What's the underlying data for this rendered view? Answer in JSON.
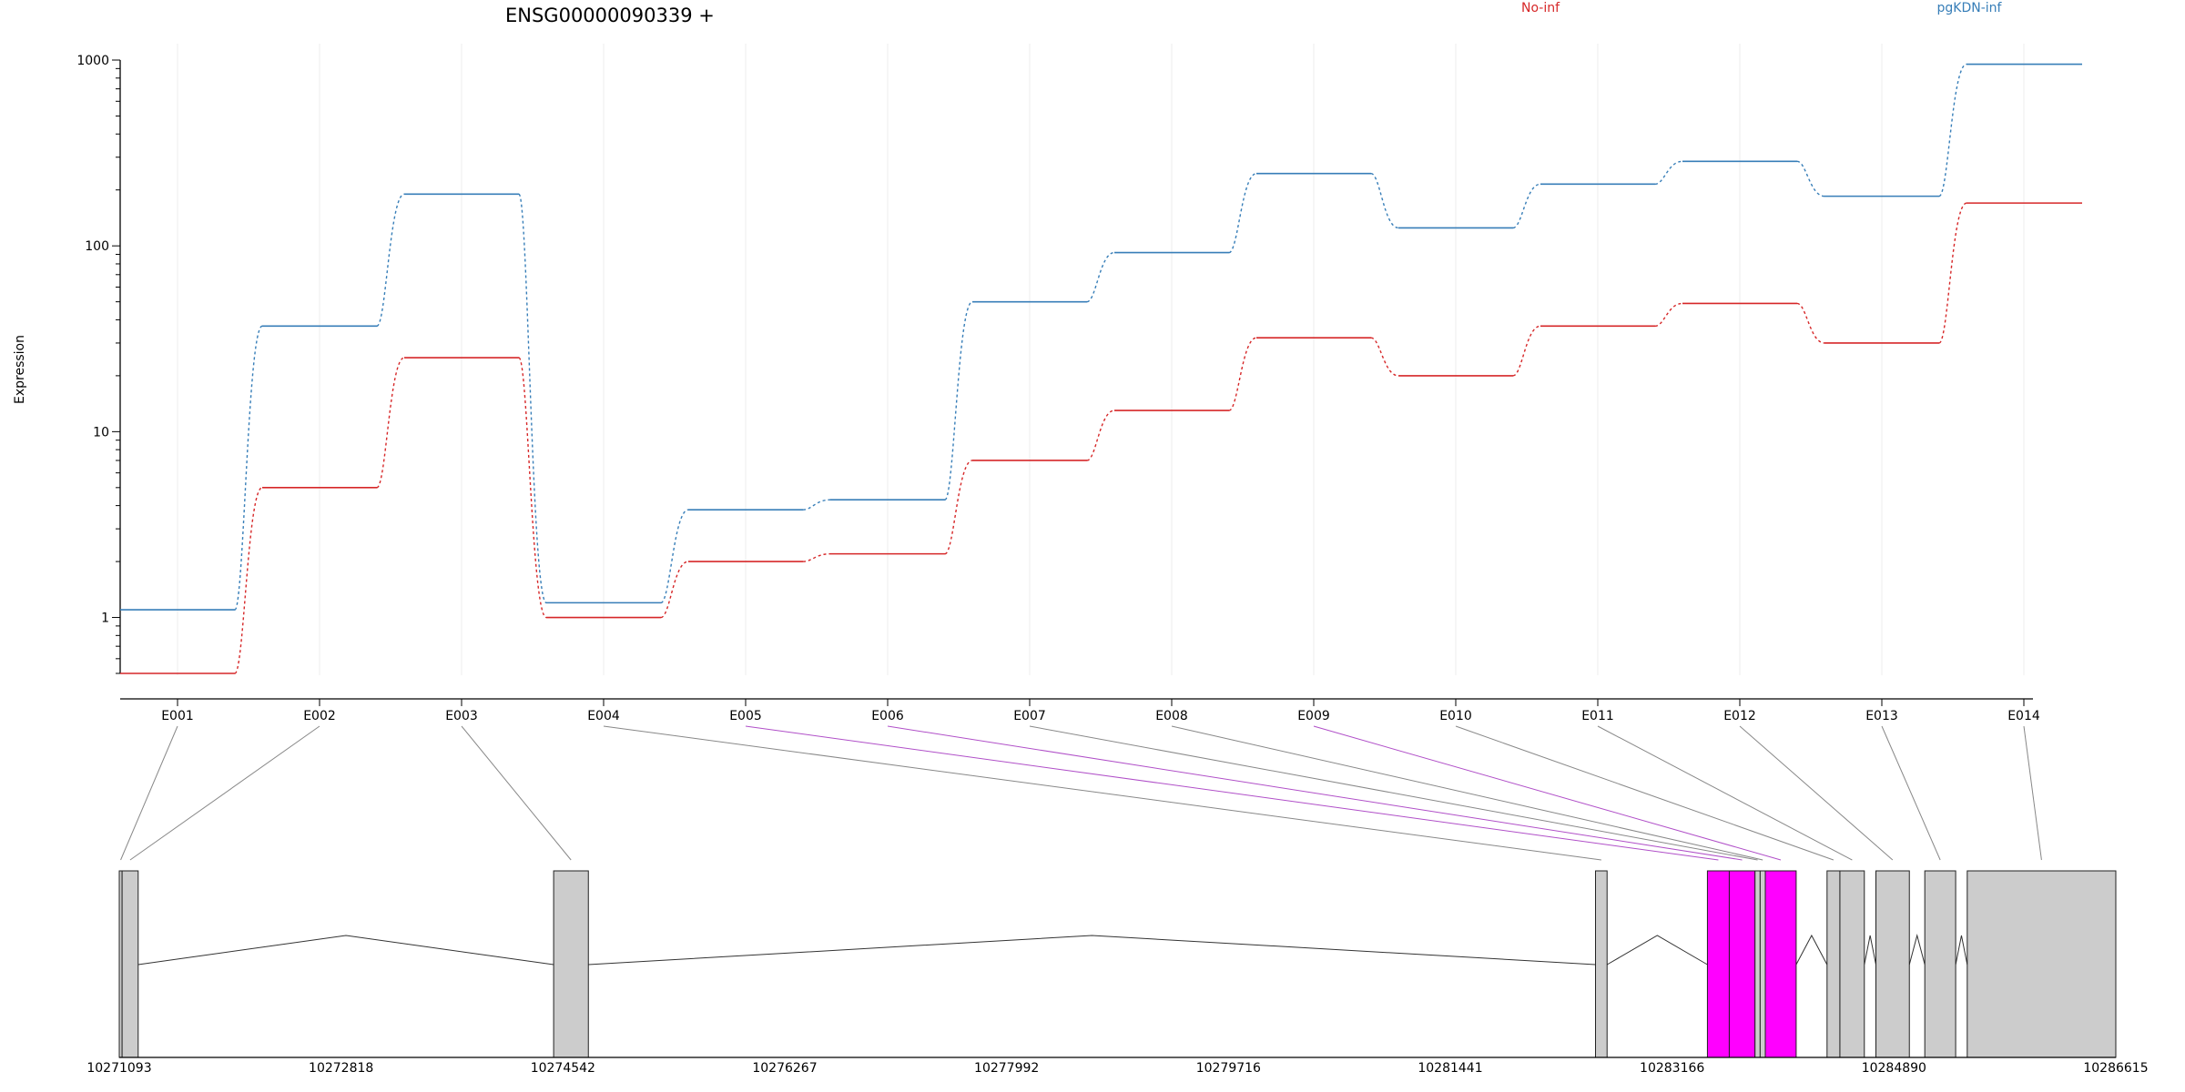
{
  "chart_data": {
    "type": "line",
    "title": "ENSG00000090339 +",
    "ylabel": "Expression",
    "y_scale": "log",
    "ylim": [
      0.5,
      1000
    ],
    "y_ticks": [
      "1",
      "10",
      "100",
      "1000"
    ],
    "categories": [
      "E001",
      "E002",
      "E003",
      "E004",
      "E005",
      "E006",
      "E007",
      "E008",
      "E009",
      "E010",
      "E011",
      "E012",
      "E013",
      "E014"
    ],
    "series": [
      {
        "name": "No-inf",
        "color": "#d62728",
        "values": [
          0.5,
          5.0,
          25,
          1.0,
          2.0,
          2.2,
          7.0,
          13,
          32,
          20,
          37,
          49,
          30,
          170
        ]
      },
      {
        "name": "pgKDN-inf",
        "color": "#377eb8",
        "values": [
          1.1,
          37,
          190,
          1.2,
          3.8,
          4.3,
          50,
          92,
          245,
          125,
          215,
          285,
          185,
          950
        ]
      }
    ],
    "legend_placement": "top",
    "highlight_color": "#ff00ff",
    "highlighted_exons": [
      "E005",
      "E006",
      "E009"
    ],
    "genome_axis": {
      "tick_labels": [
        "10271093",
        "10272818",
        "10274542",
        "10276267",
        "10277992",
        "10279716",
        "10281441",
        "10283166",
        "10284890",
        "10286615"
      ],
      "range": [
        10271093,
        10286615
      ]
    },
    "exon_model": [
      {
        "id": "E001",
        "start": 10271093,
        "end": 10271115
      },
      {
        "id": "E002",
        "start": 10271115,
        "end": 10271240
      },
      {
        "id": "E003",
        "start": 10274470,
        "end": 10274740
      },
      {
        "id": "E004",
        "start": 10282570,
        "end": 10282660
      },
      {
        "id": "E005",
        "start": 10283440,
        "end": 10283610
      },
      {
        "id": "E006",
        "start": 10283610,
        "end": 10283810
      },
      {
        "id": "E007",
        "start": 10283810,
        "end": 10283850
      },
      {
        "id": "E008",
        "start": 10283850,
        "end": 10283890
      },
      {
        "id": "E009",
        "start": 10283890,
        "end": 10284130
      },
      {
        "id": "E010",
        "start": 10284370,
        "end": 10284470
      },
      {
        "id": "E011",
        "start": 10284470,
        "end": 10284660
      },
      {
        "id": "E012",
        "start": 10284750,
        "end": 10285010
      },
      {
        "id": "E013",
        "start": 10285130,
        "end": 10285370
      },
      {
        "id": "E014",
        "start": 10285460,
        "end": 10286615
      }
    ]
  }
}
